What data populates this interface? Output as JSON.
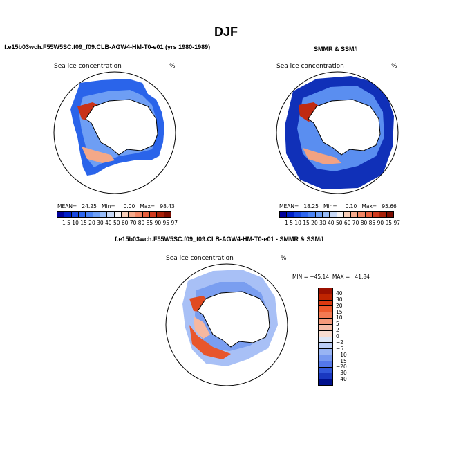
{
  "page": {
    "title": "DJF",
    "left_title": "f.e15b03wch.F55W5SC.f09_f09.CLB-AGW4-HM-T0-e01 (yrs 1980-1989)",
    "right_title": "SMMR & SSM/I",
    "diff_title": "f.e15b03wch.F55W5SC.f09_f09.CLB-AGW4-HM-T0-e01 - SMMR & SSM/I"
  },
  "panels": {
    "left": {
      "variable": "Sea ice concentration",
      "units": "%",
      "stats": "MEAN=   24.25   Min=     0.00   Max=   98.43"
    },
    "right": {
      "variable": "Sea ice concentration",
      "units": "%",
      "stats": "MEAN=   18.25   Min=     0.10   Max=   95.66"
    },
    "diff": {
      "variable": "Sea ice concentration",
      "units": "%",
      "stats": "MIN = −45.14  MAX =   41.84"
    }
  },
  "colorbars": {
    "concentration": {
      "ticks": "1  5 10 15 20 30 40 50 60 70 80 85 90 95 97",
      "colors": [
        "#00009a",
        "#0020c8",
        "#1848e0",
        "#2e66ee",
        "#4c84f4",
        "#6ea0f6",
        "#98bcf8",
        "#c8d8f6",
        "#f4f0f2",
        "#f8cdb8",
        "#f6aa8c",
        "#f28564",
        "#e8603e",
        "#d03a1e",
        "#a82008",
        "#7c0c00"
      ]
    },
    "difference": {
      "labels": [
        "40",
        "30",
        "20",
        "15",
        "10",
        "5",
        "2",
        "0",
        "−2",
        "−5",
        "−10",
        "−15",
        "−20",
        "−30",
        "−40"
      ],
      "colors": [
        "#9c1000",
        "#c02400",
        "#dc3a10",
        "#ee5a2c",
        "#f47a52",
        "#f69a7a",
        "#f6bca6",
        "#f8dcd0",
        "#dde6f6",
        "#bccef6",
        "#98b4f4",
        "#7698f0",
        "#5478ea",
        "#3258da",
        "#1a38c0",
        "#00108c"
      ]
    }
  }
}
